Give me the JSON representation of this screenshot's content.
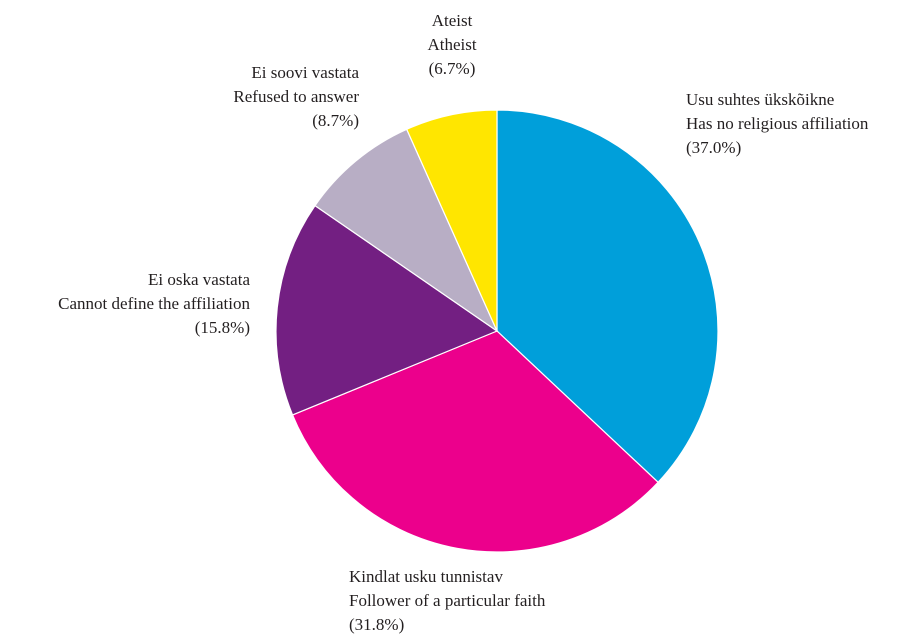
{
  "chart_data": {
    "type": "pie",
    "title": "",
    "start": "12 o'clock",
    "direction": "clockwise",
    "slices": [
      {
        "label_et": "Usu suhtes ükskõikne",
        "label_en": "Has no religious affiliation",
        "pct_label": "(37.0%)",
        "value": 37.0,
        "color": "#009fda"
      },
      {
        "label_et": "Kindlat usku tunnistav",
        "label_en": "Follower of a particular faith",
        "pct_label": "(31.8%)",
        "value": 31.8,
        "color": "#ec008c"
      },
      {
        "label_et": "Ei oska vastata",
        "label_en": "Cannot define the affiliation",
        "pct_label": "(15.8%)",
        "value": 15.8,
        "color": "#731f82"
      },
      {
        "label_et": "Ei soovi vastata",
        "label_en": "Refused to answer",
        "pct_label": "(8.7%)",
        "value": 8.7,
        "color": "#b8aec5"
      },
      {
        "label_et": "Ateist",
        "label_en": "Atheist",
        "pct_label": "(6.7%)",
        "value": 6.7,
        "color": "#ffe600"
      }
    ]
  }
}
